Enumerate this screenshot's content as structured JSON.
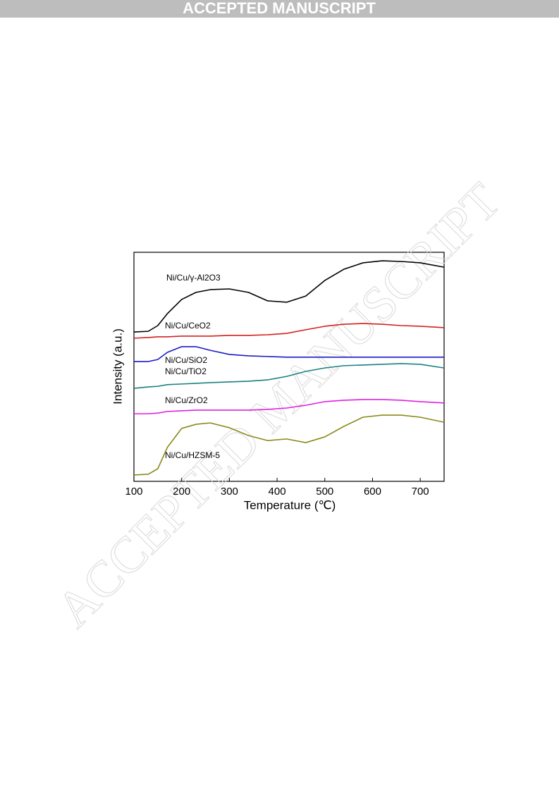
{
  "header": {
    "title": "ACCEPTED MANUSCRIPT"
  },
  "watermark": "ACCEPTED MANUSCRIPT",
  "chart_data": {
    "type": "line",
    "xlabel": "Temperature (℃)",
    "ylabel": "Intensity (a.u.)",
    "x": [
      100,
      130,
      150,
      170,
      200,
      230,
      260,
      300,
      340,
      380,
      420,
      460,
      500,
      540,
      580,
      620,
      660,
      700,
      750
    ],
    "xlim": [
      100,
      750
    ],
    "xticks": [
      100,
      200,
      300,
      400,
      500,
      600,
      700
    ],
    "ylim": [
      0,
      100
    ],
    "series": [
      {
        "name": "Ni/Cu/γ-Al2O3",
        "color": "#000000",
        "values": [
          65.2,
          65.5,
          68,
          73.2,
          79.4,
          82.5,
          83.7,
          84,
          82.5,
          78.8,
          78.2,
          80.9,
          87.7,
          92.6,
          95.4,
          96.3,
          96,
          95.4,
          93.5
        ]
      },
      {
        "name": "Ni/Cu/CeO2",
        "color": "#d42020",
        "values": [
          62.5,
          62.8,
          63.1,
          63.1,
          63.4,
          63.4,
          63.4,
          63.7,
          63.7,
          64,
          64.6,
          66.2,
          67.7,
          68.6,
          68.9,
          68.6,
          68,
          67.7,
          67.1
        ]
      },
      {
        "name": "Ni/Cu/SiO2",
        "color": "#1a1ac8",
        "values": [
          52.3,
          52.3,
          53.2,
          56.3,
          58.8,
          58.8,
          57.2,
          55.4,
          54.8,
          54.5,
          54.2,
          54.2,
          54.2,
          54.2,
          54.2,
          54.2,
          54.2,
          54.2,
          54.2
        ]
      },
      {
        "name": "Ni/Cu/TiO2",
        "color": "#1a8080",
        "values": [
          40.6,
          41.2,
          41.5,
          42.2,
          42.5,
          42.8,
          43.1,
          43.4,
          43.7,
          44.3,
          45.8,
          48,
          49.5,
          50.5,
          50.8,
          51.1,
          51.4,
          51.1,
          49.5
        ]
      },
      {
        "name": "Ni/Cu/ZrO2",
        "color": "#e020e0",
        "values": [
          29.5,
          29.5,
          29.8,
          30.5,
          30.8,
          31.1,
          31.1,
          31.1,
          31.1,
          31.4,
          32,
          33.2,
          34.8,
          35.4,
          35.7,
          35.7,
          35.4,
          34.8,
          34.2
        ]
      },
      {
        "name": "Ni/Cu/HZSM-5",
        "color": "#8a8a1a",
        "values": [
          2.8,
          3.1,
          5.5,
          14.8,
          23.1,
          24.9,
          25.5,
          23.4,
          20,
          17.8,
          18.5,
          16.9,
          19.4,
          24,
          28,
          28.9,
          28.9,
          28,
          25.8
        ]
      }
    ]
  }
}
